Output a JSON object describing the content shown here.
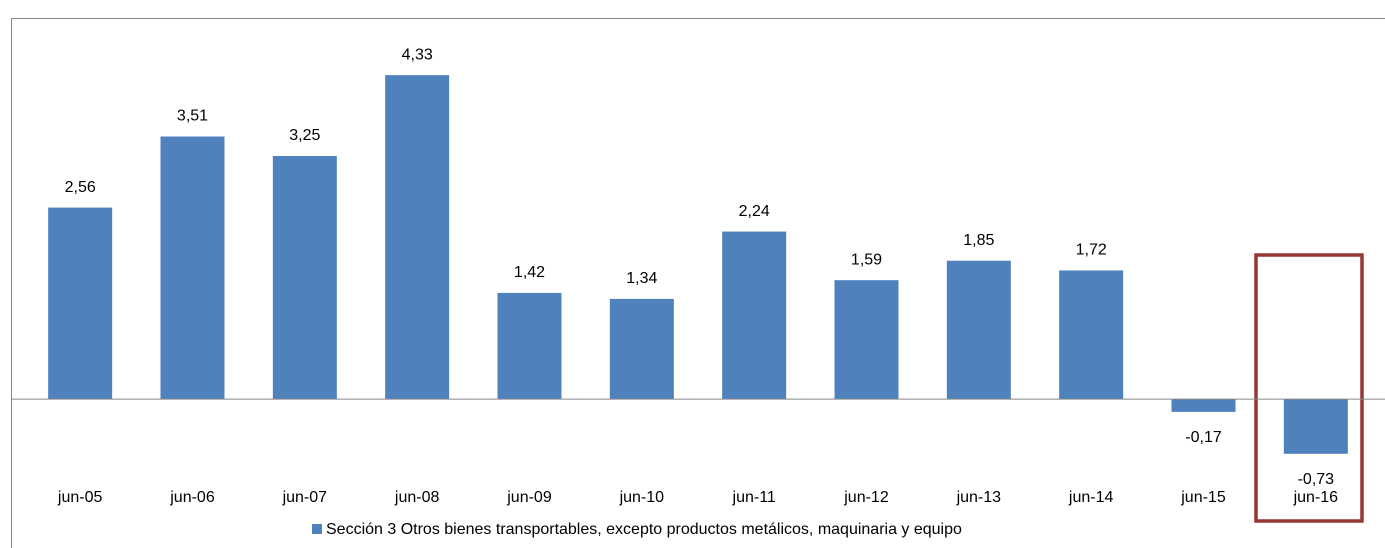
{
  "chart_data": {
    "type": "bar",
    "categories": [
      "jun-05",
      "jun-06",
      "jun-07",
      "jun-08",
      "jun-09",
      "jun-10",
      "jun-11",
      "jun-12",
      "jun-13",
      "jun-14",
      "jun-15",
      "jun-16"
    ],
    "series": [
      {
        "name": "Sección 3 Otros bienes transportables, excepto productos metálicos, maquinaria y equipo",
        "color": "#4f81bd",
        "values": [
          2.56,
          3.51,
          3.25,
          4.33,
          1.42,
          1.34,
          2.24,
          1.59,
          1.85,
          1.72,
          -0.17,
          -0.73
        ],
        "value_labels": [
          "2,56",
          "3,51",
          "3,25",
          "4,33",
          "1,42",
          "1,34",
          "2,24",
          "1,59",
          "1,85",
          "1,72",
          "-0,17",
          "-0,73"
        ]
      }
    ],
    "ylim": [
      -1,
      5
    ]
  }
}
